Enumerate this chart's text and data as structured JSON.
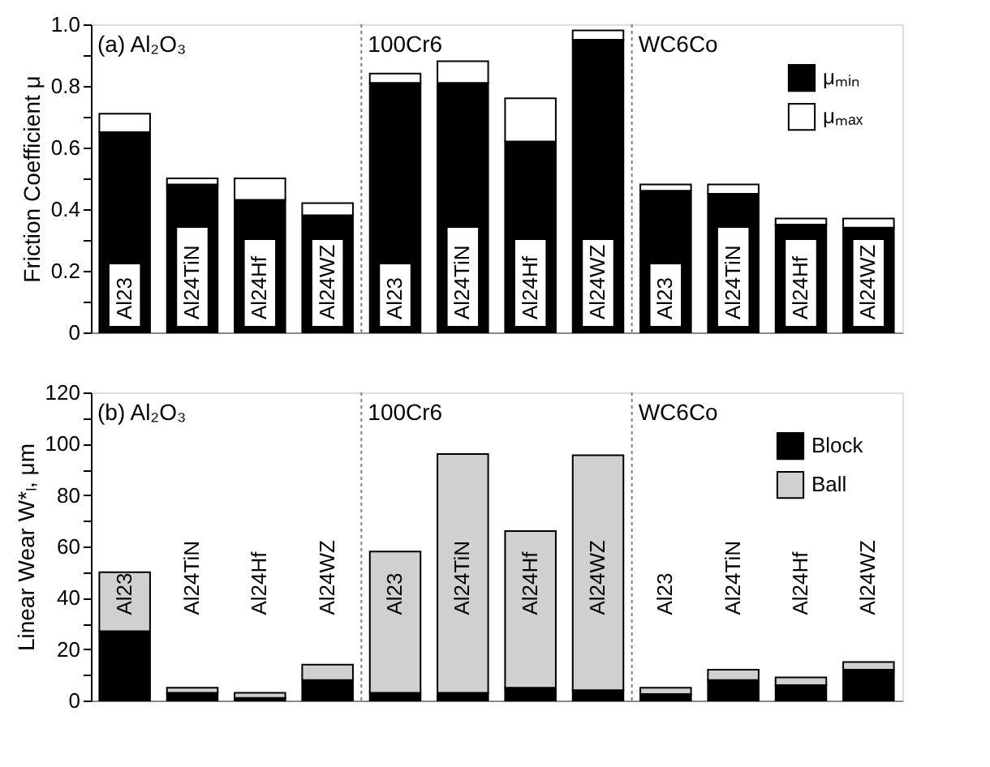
{
  "chart_data": [
    {
      "type": "bar",
      "stacked": true,
      "ylabel": "Friction Coefficient μ",
      "categories": [
        "Al23",
        "Al24TiN",
        "Al24Hf",
        "Al24WZ",
        "Al23",
        "Al24TiN",
        "Al24Hf",
        "Al24WZ",
        "Al23",
        "Al24TiN",
        "Al24Hf",
        "Al24WZ"
      ],
      "series": [
        {
          "name": "μₘᵢₙ",
          "color": "#000000",
          "values": [
            0.65,
            0.48,
            0.43,
            0.38,
            0.81,
            0.81,
            0.62,
            0.95,
            0.46,
            0.45,
            0.35,
            0.34
          ]
        },
        {
          "name": "μₘₐₓ",
          "color": "#ffffff",
          "values": [
            0.06,
            0.02,
            0.07,
            0.04,
            0.03,
            0.07,
            0.14,
            0.03,
            0.02,
            0.03,
            0.02,
            0.03
          ]
        }
      ],
      "ylim": [
        0,
        1
      ],
      "yticks": [
        0,
        {
          "value": 0.1,
          "label": null
        },
        0.2,
        {
          "value": 0.3,
          "label": null
        },
        0.4,
        {
          "value": 0.5,
          "label": null
        },
        0.6,
        {
          "value": 0.7,
          "label": null
        },
        0.8,
        {
          "value": 0.9,
          "label": null
        },
        {
          "value": 1,
          "label": "1.0"
        }
      ],
      "annotations": [
        "(a) Al₂O₃",
        "100Cr6",
        "WC6Co"
      ],
      "legend": "top right",
      "grid": false,
      "tick_labels": "y"
    },
    {
      "type": "bar",
      "stacked": true,
      "ylabel": "Linear Wear W*ₗ, μm",
      "categories": [
        "Al23",
        "Al24TiN",
        "Al24Hf",
        "Al24WZ",
        "Al23",
        "Al24TiN",
        "Al24Hf",
        "Al24WZ",
        "Al23",
        "Al24TiN",
        "Al24Hf",
        "Al24WZ"
      ],
      "series": [
        {
          "name": "Block",
          "color": "#000000",
          "values": [
            27,
            3,
            1,
            8,
            3,
            3,
            5,
            4,
            2.5,
            8,
            6,
            12
          ]
        },
        {
          "name": "Ball",
          "color": "#d0d0d0",
          "values": [
            23,
            2,
            2,
            6,
            55,
            93,
            61,
            91.5,
            2.5,
            4,
            3,
            3
          ]
        }
      ],
      "ylim": [
        0,
        120
      ],
      "yticks": [
        0,
        {
          "value": 10,
          "label": null
        },
        20,
        {
          "value": 30,
          "label": null
        },
        40,
        {
          "value": 50,
          "label": null
        },
        60,
        {
          "value": 70,
          "label": null
        },
        80,
        {
          "value": 90,
          "label": null
        },
        100,
        {
          "value": 110,
          "label": null
        },
        120
      ],
      "annotations": [
        "(b) Al₂O₃",
        "100Cr6",
        "WC6Co"
      ],
      "legend": "top right",
      "grid": false,
      "tick_labels": "y"
    }
  ]
}
